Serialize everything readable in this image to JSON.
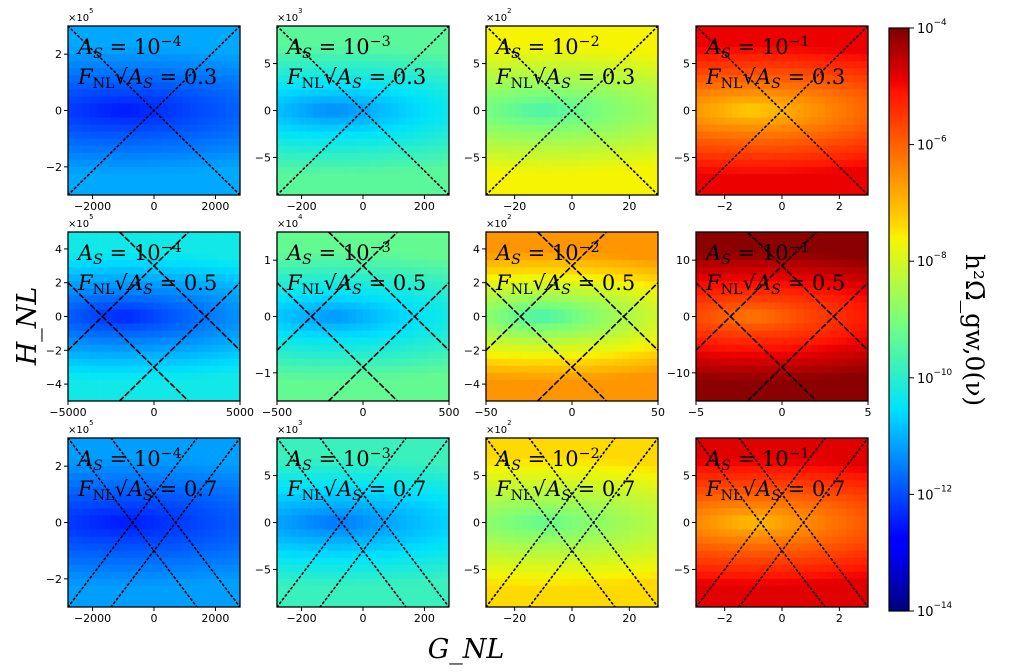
{
  "chart_data": {
    "type": "heatmap",
    "xlabel": "G_NL",
    "ylabel": "H_NL",
    "colorbar": {
      "label": "h²Ω̄_gw,0(ν)",
      "scale": "log",
      "range": [
        -14,
        -4
      ],
      "ticks": [
        "10^-4",
        "10^-6",
        "10^-8",
        "10^-10",
        "10^-12",
        "10^-14"
      ],
      "tick_values": [
        -4,
        -6,
        -8,
        -10,
        -12,
        -14
      ]
    },
    "line_styles": {
      "0.3": "dotted",
      "0.5": "dashed",
      "0.7": "dotted"
    },
    "panels": [
      {
        "As_label": "A_S = 10^-4",
        "fnl_label": "F_NL√A_S = 0.3",
        "As": -4,
        "fnl": 0.3,
        "xlim": [
          -2800,
          2800
        ],
        "ylim": [
          -3,
          3
        ],
        "y_mult": "×10^5",
        "xticks": [
          "−2000",
          "0",
          "2000"
        ],
        "xtick_values": [
          -2000,
          0,
          2000
        ],
        "yticks": [
          "2",
          "0",
          "−2"
        ],
        "ytick_values": [
          2,
          0,
          -2
        ],
        "log_min": -12.6,
        "log_max": -11.1,
        "lines": [
          [
            [
              -2800,
              -3
            ],
            [
              2800,
              3
            ]
          ],
          [
            [
              -2800,
              3
            ],
            [
              2800,
              -3
            ]
          ]
        ]
      },
      {
        "As_label": "A_S = 10^-3",
        "fnl_label": "F_NL√A_S = 0.3",
        "As": -3,
        "fnl": 0.3,
        "xlim": [
          -280,
          280
        ],
        "ylim": [
          -9,
          9
        ],
        "y_mult": "×10^3",
        "xticks": [
          "−200",
          "0",
          "200"
        ],
        "xtick_values": [
          -200,
          0,
          200
        ],
        "yticks": [
          "5",
          "0",
          "−5"
        ],
        "ytick_values": [
          5,
          0,
          -5
        ],
        "log_min": -11.5,
        "log_max": -9.4,
        "lines": [
          [
            [
              -280,
              -9
            ],
            [
              280,
              9
            ]
          ],
          [
            [
              -280,
              9
            ],
            [
              280,
              -9
            ]
          ]
        ]
      },
      {
        "As_label": "A_S = 10^-2",
        "fnl_label": "F_NL√A_S = 0.3",
        "As": -2,
        "fnl": 0.3,
        "xlim": [
          -30,
          30
        ],
        "ylim": [
          -9,
          9
        ],
        "y_mult": "×10^2",
        "xticks": [
          "−20",
          "0",
          "20"
        ],
        "xtick_values": [
          -20,
          0,
          20
        ],
        "yticks": [
          "5",
          "0",
          "−5"
        ],
        "ytick_values": [
          5,
          0,
          -5
        ],
        "log_min": -9.7,
        "log_max": -7.6,
        "lines": [
          [
            [
              -30,
              -9
            ],
            [
              30,
              9
            ]
          ],
          [
            [
              -30,
              9
            ],
            [
              30,
              -9
            ]
          ]
        ]
      },
      {
        "As_label": "A_S = 10^-1",
        "fnl_label": "F_NL√A_S = 0.3",
        "As": -1,
        "fnl": 0.3,
        "xlim": [
          -3,
          3
        ],
        "ylim": [
          -9,
          9
        ],
        "y_mult": "",
        "xticks": [
          "−2",
          "0",
          "2"
        ],
        "xtick_values": [
          -2,
          0,
          2
        ],
        "yticks": [
          "5",
          "0",
          "−5"
        ],
        "ytick_values": [
          5,
          0,
          -5
        ],
        "log_min": -7.4,
        "log_max": -4.9,
        "lines": [
          [
            [
              -3,
              -9
            ],
            [
              3,
              9
            ]
          ],
          [
            [
              -3,
              9
            ],
            [
              3,
              -9
            ]
          ]
        ]
      },
      {
        "As_label": "A_S = 10^-4",
        "fnl_label": "F_NL√A_S = 0.5",
        "As": -4,
        "fnl": 0.5,
        "xlim": [
          -5000,
          5000
        ],
        "ylim": [
          -5,
          5
        ],
        "y_mult": "×10^5",
        "xticks": [
          "−5000",
          "0",
          "5000"
        ],
        "xtick_values": [
          -5000,
          0,
          5000
        ],
        "yticks": [
          "4",
          "2",
          "0",
          "−2",
          "−4"
        ],
        "ytick_values": [
          4,
          2,
          0,
          -2,
          -4
        ],
        "log_min": -12.5,
        "log_max": -10.3,
        "lines": [
          [
            [
              -5000,
              -2
            ],
            [
              2000,
              5
            ]
          ],
          [
            [
              -5000,
              2
            ],
            [
              2000,
              -5
            ]
          ],
          [
            [
              -2000,
              -5
            ],
            [
              5000,
              2
            ]
          ],
          [
            [
              -2000,
              5
            ],
            [
              5000,
              -2
            ]
          ]
        ]
      },
      {
        "As_label": "A_S = 10^-3",
        "fnl_label": "F_NL√A_S = 0.5",
        "As": -3,
        "fnl": 0.5,
        "xlim": [
          -500,
          500
        ],
        "ylim": [
          -1.5,
          1.5
        ],
        "y_mult": "×10^4",
        "xticks": [
          "−500",
          "0",
          "500"
        ],
        "xtick_values": [
          -500,
          0,
          500
        ],
        "yticks": [
          "1",
          "0",
          "−1"
        ],
        "ytick_values": [
          1,
          0,
          -1
        ],
        "log_min": -11.4,
        "log_max": -9.3,
        "lines": [
          [
            [
              -500,
              -0.6
            ],
            [
              200,
              1.5
            ]
          ],
          [
            [
              -500,
              0.6
            ],
            [
              200,
              -1.5
            ]
          ],
          [
            [
              -200,
              -1.5
            ],
            [
              500,
              0.6
            ]
          ],
          [
            [
              -200,
              1.5
            ],
            [
              500,
              -0.6
            ]
          ]
        ]
      },
      {
        "As_label": "A_S = 10^-2",
        "fnl_label": "F_NL√A_S = 0.5",
        "As": -2,
        "fnl": 0.5,
        "xlim": [
          -50,
          50
        ],
        "ylim": [
          -5,
          5
        ],
        "y_mult": "×10^2",
        "xticks": [
          "−50",
          "0",
          "50"
        ],
        "xtick_values": [
          -50,
          0,
          50
        ],
        "yticks": [
          "4",
          "2",
          "0",
          "−2",
          "−4"
        ],
        "ytick_values": [
          4,
          2,
          0,
          -2,
          -4
        ],
        "log_min": -9.8,
        "log_max": -6.6,
        "lines": [
          [
            [
              -50,
              -2
            ],
            [
              20,
              5
            ]
          ],
          [
            [
              -50,
              2
            ],
            [
              20,
              -5
            ]
          ],
          [
            [
              -20,
              -5
            ],
            [
              50,
              2
            ]
          ],
          [
            [
              -20,
              5
            ],
            [
              50,
              -2
            ]
          ]
        ]
      },
      {
        "As_label": "A_S = 10^-1",
        "fnl_label": "F_NL√A_S = 0.5",
        "As": -1,
        "fnl": 0.5,
        "xlim": [
          -5,
          5
        ],
        "ylim": [
          -15,
          15
        ],
        "y_mult": "",
        "xticks": [
          "−5",
          "0",
          "5"
        ],
        "xtick_values": [
          -5,
          0,
          5
        ],
        "yticks": [
          "10",
          "0",
          "−10"
        ],
        "ytick_values": [
          10,
          0,
          -10
        ],
        "log_min": -6.4,
        "log_max": -4.1,
        "lines": [
          [
            [
              -5,
              -6
            ],
            [
              2,
              15
            ]
          ],
          [
            [
              -5,
              6
            ],
            [
              2,
              -15
            ]
          ],
          [
            [
              -2,
              -15
            ],
            [
              5,
              6
            ]
          ],
          [
            [
              -2,
              15
            ],
            [
              5,
              -6
            ]
          ]
        ]
      },
      {
        "As_label": "A_S = 10^-4",
        "fnl_label": "F_NL√A_S = 0.7",
        "As": -4,
        "fnl": 0.7,
        "xlim": [
          -2800,
          2800
        ],
        "ylim": [
          -3,
          3
        ],
        "y_mult": "×10^5",
        "xticks": [
          "−2000",
          "0",
          "2000"
        ],
        "xtick_values": [
          -2000,
          0,
          2000
        ],
        "yticks": [
          "2",
          "0",
          "−2"
        ],
        "ytick_values": [
          2,
          0,
          -2
        ],
        "log_min": -12.6,
        "log_max": -11.2,
        "lines": [
          [
            [
              -2800,
              -3
            ],
            [
              1400,
              3
            ]
          ],
          [
            [
              -2800,
              3
            ],
            [
              1400,
              -3
            ]
          ],
          [
            [
              -1400,
              -3
            ],
            [
              2800,
              3
            ]
          ],
          [
            [
              -1400,
              3
            ],
            [
              2800,
              -3
            ]
          ]
        ]
      },
      {
        "As_label": "A_S = 10^-3",
        "fnl_label": "F_NL√A_S = 0.7",
        "As": -3,
        "fnl": 0.7,
        "xlim": [
          -280,
          280
        ],
        "ylim": [
          -9,
          9
        ],
        "y_mult": "×10^3",
        "xticks": [
          "−200",
          "0",
          "200"
        ],
        "xtick_values": [
          -200,
          0,
          200
        ],
        "yticks": [
          "5",
          "0",
          "−5"
        ],
        "ytick_values": [
          5,
          0,
          -5
        ],
        "log_min": -11.7,
        "log_max": -9.8,
        "lines": [
          [
            [
              -280,
              -9
            ],
            [
              140,
              9
            ]
          ],
          [
            [
              -280,
              9
            ],
            [
              140,
              -9
            ]
          ],
          [
            [
              -140,
              -9
            ],
            [
              280,
              9
            ]
          ],
          [
            [
              -140,
              9
            ],
            [
              280,
              -9
            ]
          ]
        ]
      },
      {
        "As_label": "A_S = 10^-2",
        "fnl_label": "F_NL√A_S = 0.7",
        "As": -2,
        "fnl": 0.7,
        "xlim": [
          -30,
          30
        ],
        "ylim": [
          -9,
          9
        ],
        "y_mult": "×10^2",
        "xticks": [
          "−20",
          "0",
          "20"
        ],
        "xtick_values": [
          -20,
          0,
          20
        ],
        "yticks": [
          "5",
          "0",
          "−5"
        ],
        "ytick_values": [
          5,
          0,
          -5
        ],
        "log_min": -9.4,
        "log_max": -7.4,
        "lines": [
          [
            [
              -30,
              -9
            ],
            [
              15,
              9
            ]
          ],
          [
            [
              -30,
              9
            ],
            [
              15,
              -9
            ]
          ],
          [
            [
              -15,
              -9
            ],
            [
              30,
              9
            ]
          ],
          [
            [
              -15,
              9
            ],
            [
              30,
              -9
            ]
          ]
        ]
      },
      {
        "As_label": "A_S = 10^-1",
        "fnl_label": "F_NL√A_S = 0.7",
        "As": -1,
        "fnl": 0.7,
        "xlim": [
          -3,
          3
        ],
        "ylim": [
          -9,
          9
        ],
        "y_mult": "",
        "xticks": [
          "−2",
          "0",
          "2"
        ],
        "xtick_values": [
          -2,
          0,
          2
        ],
        "yticks": [
          "5",
          "0",
          "−5"
        ],
        "ytick_values": [
          5,
          0,
          -5
        ],
        "log_min": -7.2,
        "log_max": -4.8,
        "lines": [
          [
            [
              -3,
              -9
            ],
            [
              1.5,
              9
            ]
          ],
          [
            [
              -3,
              9
            ],
            [
              1.5,
              -9
            ]
          ],
          [
            [
              -1.5,
              -9
            ],
            [
              3,
              9
            ]
          ],
          [
            [
              -1.5,
              9
            ],
            [
              3,
              -9
            ]
          ]
        ]
      }
    ]
  }
}
